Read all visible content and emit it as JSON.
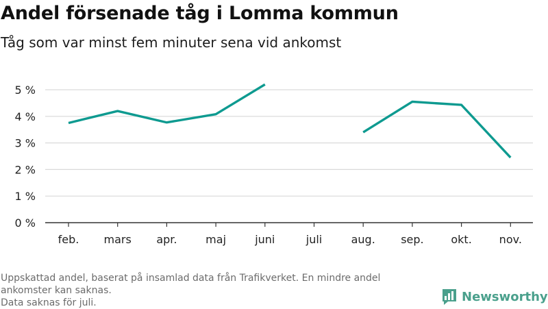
{
  "title": "Andel försenade tåg i Lomma kommun",
  "subtitle": "Tåg som var minst fem minuter sena vid ankomst",
  "footer": {
    "line1": "Uppskattad andel, baserat på insamlad data från Trafikverket. En mindre andel",
    "line2": "ankomster kan saknas.",
    "line3": "Data saknas för juli."
  },
  "brand": {
    "name": "Newsworthy",
    "color": "#4aa08c"
  },
  "chart_data": {
    "type": "line",
    "categories": [
      "feb.",
      "mars",
      "apr.",
      "maj",
      "juni",
      "juli",
      "aug.",
      "sep.",
      "okt.",
      "nov."
    ],
    "series": [
      {
        "values": [
          3.75,
          4.2,
          3.77,
          4.08,
          5.2,
          null,
          3.4,
          4.55,
          4.43,
          2.45
        ]
      }
    ],
    "ylim": [
      0,
      5
    ],
    "yticks": [
      0,
      1,
      2,
      3,
      4,
      5
    ],
    "ytick_labels": [
      "0 %",
      "1 %",
      "2 %",
      "3 %",
      "4 %",
      "5 %"
    ],
    "grid": true,
    "line_color": "#0e9a90",
    "xlabel": "",
    "ylabel": ""
  }
}
